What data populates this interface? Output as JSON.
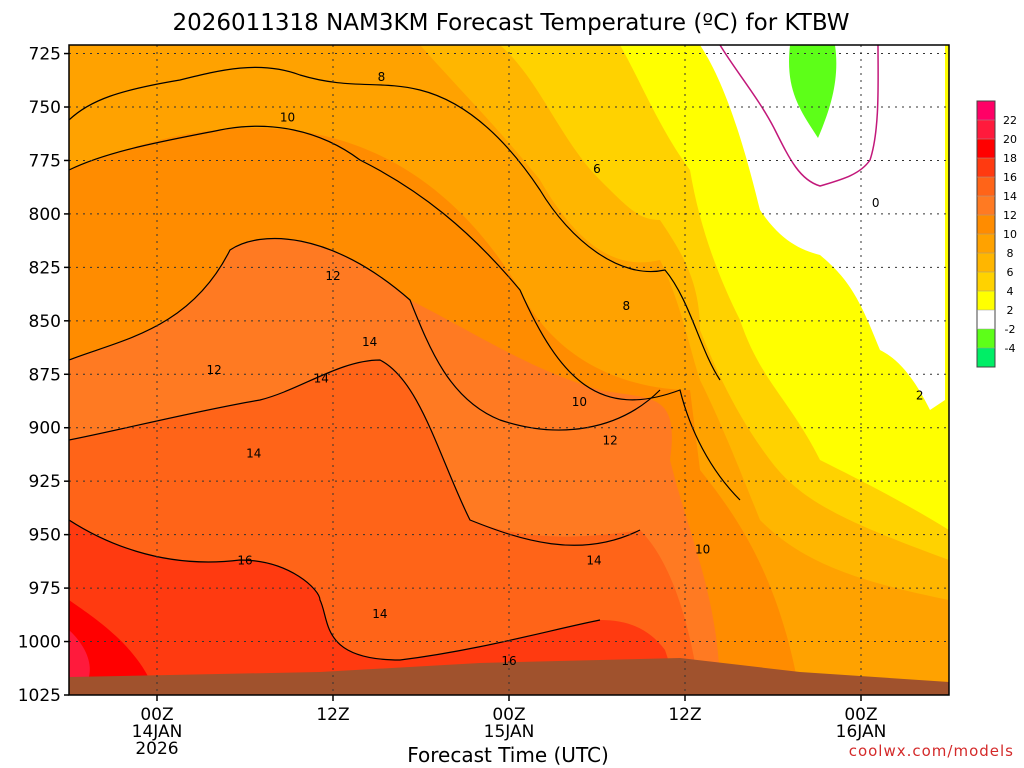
{
  "chart_data": {
    "type": "heatmap",
    "title": "2026011318 NAM3KM Forecast Temperature (ºC) for KTBW",
    "xlabel": "Forecast Time (UTC)",
    "ylabel": "",
    "x_ticks": [
      {
        "hour": 6,
        "lines": [
          "00Z",
          "14JAN",
          "2026"
        ]
      },
      {
        "hour": 18,
        "lines": [
          "12Z"
        ]
      },
      {
        "hour": 30,
        "lines": [
          "00Z",
          "15JAN"
        ]
      },
      {
        "hour": 42,
        "lines": [
          "12Z"
        ]
      },
      {
        "hour": 54,
        "lines": [
          "00Z",
          "16JAN"
        ]
      }
    ],
    "xlim": [
      0,
      60
    ],
    "y_ticks": [
      725,
      750,
      775,
      800,
      825,
      850,
      875,
      900,
      925,
      950,
      975,
      1000,
      1025
    ],
    "ylim": [
      1025,
      721
    ],
    "contour_labels": [
      {
        "text": "8",
        "hour": 21.3,
        "p": 736
      },
      {
        "text": "10",
        "hour": 14.9,
        "p": 755
      },
      {
        "text": "6",
        "hour": 36.0,
        "p": 779
      },
      {
        "text": "0",
        "hour": 55.0,
        "p": 795
      },
      {
        "text": "12",
        "hour": 18.0,
        "p": 829
      },
      {
        "text": "8",
        "hour": 38.0,
        "p": 843
      },
      {
        "text": "14",
        "hour": 20.5,
        "p": 860
      },
      {
        "text": "14",
        "hour": 17.2,
        "p": 877
      },
      {
        "text": "12",
        "hour": 9.9,
        "p": 873
      },
      {
        "text": "10",
        "hour": 34.8,
        "p": 888
      },
      {
        "text": "2",
        "hour": 58.0,
        "p": 885
      },
      {
        "text": "12",
        "hour": 36.9,
        "p": 906
      },
      {
        "text": "14",
        "hour": 12.6,
        "p": 912
      },
      {
        "text": "10",
        "hour": 43.2,
        "p": 957
      },
      {
        "text": "14",
        "hour": 35.8,
        "p": 962
      },
      {
        "text": "16",
        "hour": 12.0,
        "p": 962
      },
      {
        "text": "14",
        "hour": 21.2,
        "p": 987
      },
      {
        "text": "16",
        "hour": 30.0,
        "p": 1009
      }
    ],
    "colorbar": {
      "labels": [
        "22",
        "20",
        "18",
        "16",
        "14",
        "12",
        "10",
        "8",
        "6",
        "4",
        "2",
        "-2",
        "-4"
      ],
      "colors": [
        "#ff0066",
        "#ff1a3c",
        "#ff0000",
        "#ff3a10",
        "#ff6418",
        "#ff7a22",
        "#ff8c00",
        "#ffa200",
        "#ffb600",
        "#ffd200",
        "#ffff00",
        "#ffffff",
        "#5dff18",
        "#00ee66"
      ]
    },
    "colors": {
      "ground": "#a0522d",
      "freezing_line": "#c2187a",
      "contour": "#000000",
      "grid": "#333333"
    }
  },
  "credit": "coolwx.com/models"
}
